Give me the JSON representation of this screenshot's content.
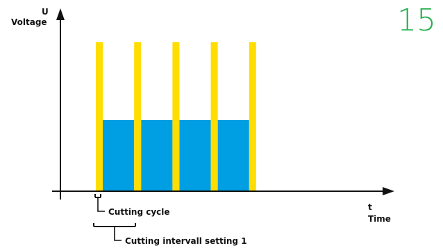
{
  "figure_number": "15",
  "colors": {
    "pulse": "#ffdd00",
    "fill": "#009fe3",
    "axis": "#111111",
    "figure_number": "#22b14c"
  },
  "y_axis": {
    "symbol": "U",
    "label": "Voltage"
  },
  "x_axis": {
    "symbol": "t",
    "label": "Time"
  },
  "annotations": {
    "cutting_cycle": "Cutting cycle",
    "cutting_interval": "Cutting intervall setting 1"
  },
  "chart_data": {
    "type": "area",
    "pulse_count": 5,
    "pulse_level": "high",
    "fill_segments": 4,
    "fill_level": "medium"
  }
}
